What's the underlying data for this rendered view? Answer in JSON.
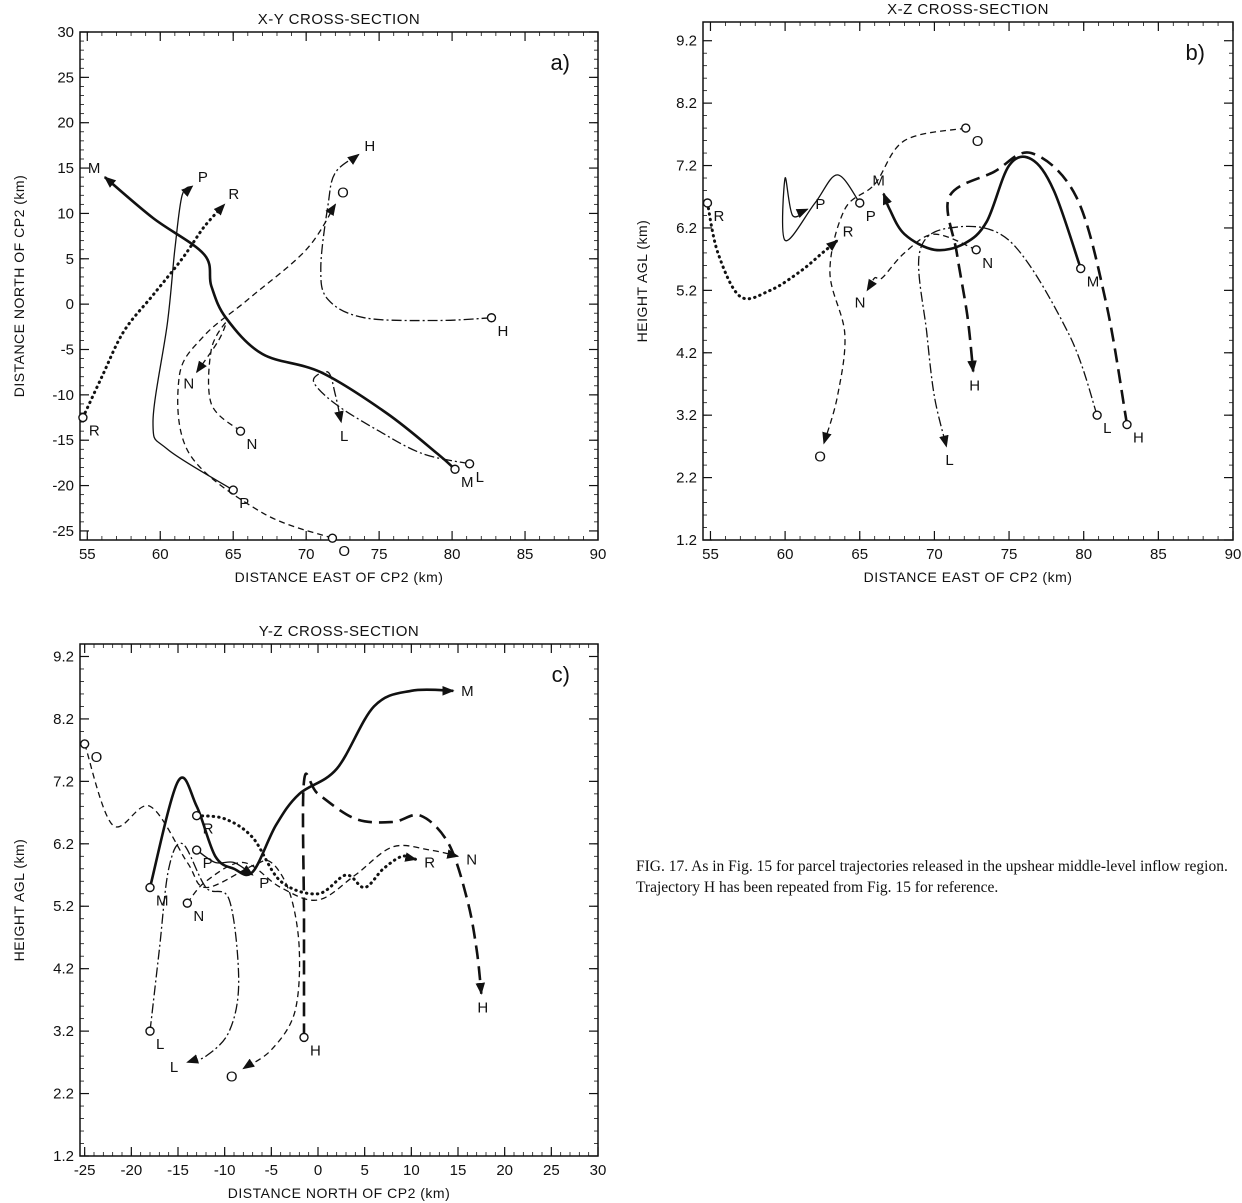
{
  "caption": "FIG. 17. As in Fig. 15 for parcel trajectories released in the upshear middle-level inflow region. Trajectory H has been repeated from Fig. 15 for reference.",
  "chart_data": [
    {
      "type": "line",
      "panel": "a)",
      "title": "X-Y CROSS-SECTION",
      "xlabel": "DISTANCE EAST OF CP2 (km)",
      "ylabel": "DISTANCE NORTH OF CP2 (km)",
      "xlim": [
        54.5,
        90
      ],
      "ylim": [
        -26,
        30
      ],
      "xticks": [
        55,
        60,
        65,
        70,
        75,
        80,
        85,
        90
      ],
      "yticks": [
        30,
        25,
        20,
        15,
        10,
        5,
        0,
        -5,
        -10,
        -15,
        -20,
        -25
      ],
      "series": [
        {
          "name": "M",
          "style": "solid-bold",
          "start_label": "M",
          "end_label": "M",
          "points": [
            [
              80.2,
              -18.2
            ],
            [
              79,
              -16.5
            ],
            [
              75.5,
              -12
            ],
            [
              71,
              -7.5
            ],
            [
              67,
              -5.5
            ],
            [
              64.5,
              -1.5
            ],
            [
              63.5,
              2
            ],
            [
              63,
              5.5
            ],
            [
              59.5,
              9.5
            ],
            [
              56.2,
              14
            ]
          ]
        },
        {
          "name": "P",
          "style": "solid-thin",
          "start_label": "P",
          "end_label": "P",
          "points": [
            [
              65,
              -20.5
            ],
            [
              60.5,
              -16
            ],
            [
              59.5,
              -13
            ],
            [
              60.5,
              -2
            ],
            [
              61,
              6
            ],
            [
              61.5,
              12
            ],
            [
              62.2,
              13
            ]
          ]
        },
        {
          "name": "R",
          "style": "dotted",
          "start_label": "R",
          "end_label": "R",
          "points": [
            [
              54.7,
              -12.5
            ],
            [
              56,
              -8
            ],
            [
              57.5,
              -3
            ],
            [
              59.5,
              1
            ],
            [
              61.5,
              5
            ],
            [
              63,
              8.5
            ],
            [
              64.4,
              11
            ]
          ]
        },
        {
          "name": "O",
          "style": "dashed",
          "start_label": "O",
          "end_label": "O",
          "points": [
            [
              71.8,
              -25.8
            ],
            [
              67,
              -23
            ],
            [
              62,
              -16.5
            ],
            [
              61.3,
              -8
            ],
            [
              63,
              -3.5
            ],
            [
              66,
              0.5
            ],
            [
              70,
              6
            ],
            [
              72,
              11
            ]
          ]
        },
        {
          "name": "N",
          "style": "dashed",
          "start_label": "N",
          "end_label": "N",
          "points": [
            [
              65.5,
              -14
            ],
            [
              63.5,
              -11
            ],
            [
              63.5,
              -5
            ],
            [
              64.5,
              -2
            ],
            [
              64,
              -4
            ],
            [
              62.5,
              -7.5
            ]
          ]
        },
        {
          "name": "H",
          "style": "dash-dot",
          "start_label": "H",
          "end_label": "H",
          "points": [
            [
              82.7,
              -1.5
            ],
            [
              79,
              -1.8
            ],
            [
              74,
              -1.5
            ],
            [
              71.5,
              0.5
            ],
            [
              71,
              4
            ],
            [
              71.5,
              11
            ],
            [
              72,
              14.5
            ],
            [
              73.6,
              16.5
            ]
          ]
        },
        {
          "name": "L",
          "style": "dash-dot",
          "start_label": "L",
          "end_label": "L",
          "points": [
            [
              81.2,
              -17.6
            ],
            [
              78,
              -16.5
            ],
            [
              75,
              -14
            ],
            [
              72,
              -11
            ],
            [
              70.5,
              -8.5
            ],
            [
              71.5,
              -7.5
            ],
            [
              72,
              -10
            ],
            [
              72.4,
              -13
            ]
          ]
        }
      ]
    },
    {
      "type": "line",
      "panel": "b)",
      "title": "X-Z CROSS-SECTION",
      "xlabel": "DISTANCE EAST OF CP2 (km)",
      "ylabel": "HEIGHT AGL (km)",
      "xlim": [
        54.5,
        90
      ],
      "ylim": [
        1.2,
        9.5
      ],
      "xticks": [
        55,
        60,
        65,
        70,
        75,
        80,
        85,
        90
      ],
      "yticks": [
        9.2,
        8.2,
        7.2,
        6.2,
        5.2,
        4.2,
        3.2,
        2.2,
        1.2
      ],
      "series": [
        {
          "name": "M",
          "style": "solid-bold",
          "start_label": "M",
          "end_label": "M",
          "points": [
            [
              79.8,
              5.55
            ],
            [
              78,
              6.8
            ],
            [
              76.5,
              7.3
            ],
            [
              75,
              7.2
            ],
            [
              73.5,
              6.3
            ],
            [
              72,
              5.95
            ],
            [
              70,
              5.85
            ],
            [
              68,
              6.1
            ],
            [
              67,
              6.5
            ],
            [
              66.6,
              6.75
            ]
          ]
        },
        {
          "name": "P",
          "style": "solid-thin",
          "start_label": "P",
          "end_label": "P",
          "points": [
            [
              65,
              6.6
            ],
            [
              63.5,
              7.05
            ],
            [
              62,
              6.6
            ],
            [
              60,
              6.0
            ],
            [
              60,
              7.0
            ],
            [
              60.5,
              6.4
            ],
            [
              61.5,
              6.5
            ]
          ]
        },
        {
          "name": "R",
          "style": "dotted",
          "start_label": "R",
          "end_label": "R",
          "points": [
            [
              54.8,
              6.6
            ],
            [
              55.5,
              5.8
            ],
            [
              57,
              5.1
            ],
            [
              59,
              5.2
            ],
            [
              61,
              5.5
            ],
            [
              62.5,
              5.8
            ],
            [
              63.5,
              6.0
            ]
          ]
        },
        {
          "name": "O",
          "style": "dashed",
          "start_label": "O",
          "end_label": "O",
          "points": [
            [
              72.1,
              7.8
            ],
            [
              68,
              7.6
            ],
            [
              66,
              6.9
            ],
            [
              64,
              6.5
            ],
            [
              63,
              5.5
            ],
            [
              64,
              4.5
            ],
            [
              63.5,
              3.5
            ],
            [
              62.6,
              2.75
            ]
          ]
        },
        {
          "name": "N",
          "style": "dashed",
          "start_label": "N",
          "end_label": "N",
          "points": [
            [
              72.8,
              5.85
            ],
            [
              70,
              6.1
            ],
            [
              68,
              5.8
            ],
            [
              66.5,
              5.4
            ],
            [
              66,
              5.4
            ],
            [
              65.5,
              5.2
            ]
          ]
        },
        {
          "name": "H",
          "style": "dash-bold",
          "start_label": "H",
          "end_label": "H",
          "points": [
            [
              82.9,
              3.05
            ],
            [
              81.5,
              5
            ],
            [
              79.5,
              6.7
            ],
            [
              76.5,
              7.4
            ],
            [
              74,
              7.1
            ],
            [
              71,
              6.7
            ],
            [
              71.5,
              5.8
            ],
            [
              72.2,
              4.8
            ],
            [
              72.6,
              3.9
            ]
          ]
        },
        {
          "name": "L",
          "style": "dash-dot",
          "start_label": "L",
          "end_label": "L",
          "points": [
            [
              80.9,
              3.2
            ],
            [
              79,
              4.5
            ],
            [
              75,
              6.0
            ],
            [
              71,
              6.2
            ],
            [
              69,
              5.8
            ],
            [
              69.5,
              4.5
            ],
            [
              70,
              3.5
            ],
            [
              70.8,
              2.7
            ]
          ]
        }
      ]
    },
    {
      "type": "line",
      "panel": "c)",
      "title": "Y-Z CROSS-SECTION",
      "xlabel": "DISTANCE NORTH OF CP2 (km)",
      "ylabel": "HEIGHT AGL (km)",
      "xlim": [
        -25.5,
        30
      ],
      "ylim": [
        1.2,
        9.4
      ],
      "xticks": [
        -25,
        -20,
        -15,
        -10,
        -5,
        0,
        5,
        10,
        15,
        20,
        25,
        30
      ],
      "yticks": [
        9.2,
        8.2,
        7.2,
        6.2,
        5.2,
        4.2,
        3.2,
        2.2,
        1.2
      ],
      "series": [
        {
          "name": "M",
          "style": "solid-bold",
          "start_label": "M",
          "end_label": "M",
          "points": [
            [
              -18,
              5.5
            ],
            [
              -15,
              7.2
            ],
            [
              -13,
              6.8
            ],
            [
              -11,
              6.0
            ],
            [
              -9,
              5.8
            ],
            [
              -7,
              5.75
            ],
            [
              -4.5,
              6.5
            ],
            [
              -2,
              7.0
            ],
            [
              2,
              7.4
            ],
            [
              6,
              8.4
            ],
            [
              10,
              8.65
            ],
            [
              14.5,
              8.65
            ]
          ]
        },
        {
          "name": "P",
          "style": "solid-thin",
          "start_label": "P",
          "end_label": "P",
          "points": [
            [
              -13,
              6.1
            ],
            [
              -11,
              5.9
            ],
            [
              -9,
              5.9
            ],
            [
              -7,
              5.7
            ]
          ]
        },
        {
          "name": "R",
          "style": "dotted",
          "start_label": "R",
          "end_label": "R",
          "points": [
            [
              -13,
              6.65
            ],
            [
              -10,
              6.6
            ],
            [
              -7,
              6.3
            ],
            [
              -4,
              5.6
            ],
            [
              0,
              5.4
            ],
            [
              3,
              5.7
            ],
            [
              5,
              5.5
            ],
            [
              7,
              5.8
            ],
            [
              9,
              6.0
            ],
            [
              10.5,
              5.95
            ]
          ]
        },
        {
          "name": "O",
          "style": "dashed",
          "start_label": "O",
          "end_label": "O",
          "points": [
            [
              -25,
              7.8
            ],
            [
              -22,
              6.5
            ],
            [
              -18,
              6.8
            ],
            [
              -14,
              5.9
            ],
            [
              -12,
              5.5
            ],
            [
              -7,
              5.85
            ],
            [
              -5,
              5.9
            ],
            [
              -3,
              5.4
            ],
            [
              -2,
              4.5
            ],
            [
              -2.5,
              3.5
            ],
            [
              -5,
              2.9
            ],
            [
              -8,
              2.6
            ]
          ]
        },
        {
          "name": "N",
          "style": "dashed",
          "start_label": "N",
          "end_label": "N",
          "points": [
            [
              -14,
              5.25
            ],
            [
              -12,
              5.6
            ],
            [
              -8,
              5.9
            ],
            [
              -4,
              5.5
            ],
            [
              0,
              5.3
            ],
            [
              4,
              5.7
            ],
            [
              8,
              6.15
            ],
            [
              12,
              6.1
            ],
            [
              15,
              6.0
            ]
          ]
        },
        {
          "name": "H",
          "style": "dash-bold",
          "start_label": "H",
          "end_label": "H",
          "points": [
            [
              -1.5,
              3.1
            ],
            [
              -1.5,
              5.0
            ],
            [
              -1.5,
              7.2
            ],
            [
              0,
              7.0
            ],
            [
              4,
              6.6
            ],
            [
              8,
              6.55
            ],
            [
              11,
              6.65
            ],
            [
              14,
              6.2
            ],
            [
              16,
              5.3
            ],
            [
              17,
              4.5
            ],
            [
              17.5,
              3.8
            ]
          ]
        },
        {
          "name": "L",
          "style": "dash-dot",
          "start_label": "L",
          "end_label": "L",
          "points": [
            [
              -18,
              3.2
            ],
            [
              -17,
              4.5
            ],
            [
              -16,
              5.8
            ],
            [
              -14.5,
              6.2
            ],
            [
              -12,
              5.5
            ],
            [
              -9.5,
              5.3
            ],
            [
              -8.5,
              4.0
            ],
            [
              -9.5,
              3.2
            ],
            [
              -12,
              2.8
            ],
            [
              -14,
              2.7
            ]
          ]
        }
      ]
    }
  ]
}
